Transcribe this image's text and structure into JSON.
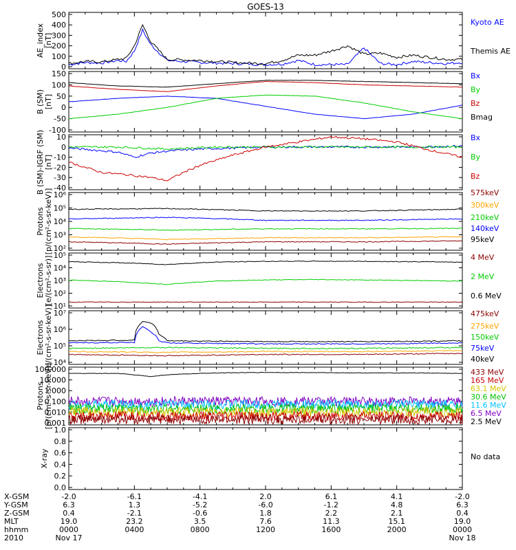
{
  "title": "GOES-13",
  "colors": {
    "black": "#000000",
    "blue": "#0000ff",
    "green": "#00cc00",
    "red": "#cc0000",
    "darkred": "#8b0000",
    "orange": "#ffa500",
    "gold": "#d4c400",
    "cyan": "#00bfff",
    "purple": "#8000c0",
    "lime": "#00c000"
  },
  "panels": [
    {
      "id": "ae",
      "ylabel": [
        "AE_index",
        "[nT]"
      ],
      "ticks": [
        "500",
        "400",
        "300",
        "200",
        "100",
        "0"
      ],
      "legend": [
        {
          "text": "Kyoto AE",
          "color": "#0000ff"
        },
        {
          "text": "Themis AE",
          "color": "#000000"
        }
      ]
    },
    {
      "id": "bsm",
      "ylabel": [
        "B (SM)",
        "[nT]"
      ],
      "ticks": [
        "150",
        "100",
        "50",
        "0",
        "-50",
        "-100"
      ],
      "legend": [
        {
          "text": "Bx",
          "color": "#0000ff"
        },
        {
          "text": "By",
          "color": "#00cc00"
        },
        {
          "text": "Bz",
          "color": "#cc0000"
        },
        {
          "text": "Bmag",
          "color": "#000000"
        }
      ]
    },
    {
      "id": "bigrf",
      "ylabel": [
        "B (SM)-IGRF (SM)",
        "[nT]"
      ],
      "ticks": [
        "10",
        "0",
        "-10",
        "-20",
        "-30",
        "-40"
      ],
      "legend": [
        {
          "text": "Bx",
          "color": "#0000ff"
        },
        {
          "text": "By",
          "color": "#00cc00"
        },
        {
          "text": "Bz",
          "color": "#cc0000"
        }
      ]
    },
    {
      "id": "protons",
      "ylabel": [
        "Protons",
        "[p/(cm²-s-sr-keV)]"
      ],
      "ticks": [
        "10⁶",
        "10⁵",
        "10⁴",
        "10³",
        "10²"
      ],
      "legend": [
        {
          "text": "575keV",
          "color": "#8b0000"
        },
        {
          "text": "300keV",
          "color": "#ffa500"
        },
        {
          "text": "210keV",
          "color": "#00cc00"
        },
        {
          "text": "140keV",
          "color": "#0000ff"
        },
        {
          "text": "95keV",
          "color": "#000000"
        }
      ]
    },
    {
      "id": "electrons_mev",
      "ylabel": [
        "Electrons",
        "[e/(cm²-s-sr)]"
      ],
      "ticks": [
        "10⁵",
        "10⁴",
        "10³",
        "10²",
        "10¹"
      ],
      "legend": [
        {
          "text": "4 MeV",
          "color": "#8b0000"
        },
        {
          "text": "2 MeV",
          "color": "#00cc00"
        },
        {
          "text": "0.6 MeV",
          "color": "#000000"
        }
      ]
    },
    {
      "id": "electrons_kev",
      "ylabel": [
        "Electrons",
        "[e/(cm²-s-sr-keV)]"
      ],
      "ticks": [
        "10⁷",
        "10⁶",
        "10⁵",
        "10⁴"
      ],
      "legend": [
        {
          "text": "475keV",
          "color": "#8b0000"
        },
        {
          "text": "275keV",
          "color": "#ffa500"
        },
        {
          "text": "150keV",
          "color": "#00cc00"
        },
        {
          "text": "75keV",
          "color": "#0000ff"
        },
        {
          "text": "40keV",
          "color": "#000000"
        }
      ]
    },
    {
      "id": "protons_mev",
      "ylabel": [
        "Protons",
        "[p/(cm²-s-sr-keV)]"
      ],
      "ticks": [
        "100.000",
        "10.000",
        "1.000",
        "0.100",
        "0.010",
        "0.001"
      ],
      "legend": [
        {
          "text": "433 MeV",
          "color": "#8b0000"
        },
        {
          "text": "165 MeV",
          "color": "#cc0000"
        },
        {
          "text": "63.1 MeV",
          "color": "#d4c400"
        },
        {
          "text": "30.6 MeV",
          "color": "#00c000"
        },
        {
          "text": "11.6 MeV",
          "color": "#00bfff"
        },
        {
          "text": "6.5 MeV",
          "color": "#8000c0"
        },
        {
          "text": "2.5 MeV",
          "color": "#000000"
        }
      ]
    },
    {
      "id": "xray",
      "ylabel": [
        "X-ray"
      ],
      "ticks": [
        "1.0",
        "0.8",
        "0.6",
        "0.4",
        "0.2",
        "0.0"
      ],
      "legend": [
        {
          "text": "No data",
          "color": "#000000"
        }
      ]
    }
  ],
  "footer": {
    "rows": [
      {
        "label": "X-GSM",
        "values": [
          "-2.0",
          "-6.1",
          "-4.1",
          "2.0",
          "6.1",
          "4.1",
          "-2.0"
        ]
      },
      {
        "label": "Y-GSM",
        "values": [
          "6.3",
          "1.3",
          "-5.2",
          "-6.0",
          "-1.2",
          "4.8",
          "6.3"
        ]
      },
      {
        "label": "Z-GSM",
        "values": [
          "0.4",
          "-2.1",
          "-0.6",
          "1.8",
          "2.2",
          "2.1",
          "0.4"
        ]
      },
      {
        "label": "MLT",
        "values": [
          "19.0",
          "23.2",
          "3.5",
          "7.6",
          "11.3",
          "15.1",
          "19.0"
        ]
      },
      {
        "label": "hhmm",
        "values": [
          "0000",
          "0400",
          "0800",
          "1200",
          "1600",
          "2000",
          "0000"
        ]
      },
      {
        "label": "2010",
        "values": [
          "Nov 17",
          "",
          "",
          "",
          "",
          "",
          "Nov 18"
        ]
      }
    ]
  },
  "chart_data": {
    "type": "line",
    "title": "GOES-13",
    "x": [
      "0000",
      "0400",
      "0800",
      "1200",
      "1600",
      "2000",
      "0000"
    ],
    "x_date_start": "Nov 17 2010",
    "x_date_end": "Nov 18 2010",
    "panels": [
      {
        "name": "AE_index",
        "ylabel": "AE_index [nT]",
        "ylim": [
          0,
          500
        ],
        "series": [
          {
            "name": "Kyoto AE",
            "x_hours": [
              0,
              1,
              2,
              3,
              3.5,
              4,
              4.5,
              5,
              6,
              8,
              10,
              12,
              13,
              14,
              15,
              16,
              17,
              18,
              19,
              20,
              21,
              22,
              23,
              24
            ],
            "values": [
              20,
              40,
              35,
              60,
              50,
              150,
              350,
              210,
              60,
              40,
              30,
              20,
              25,
              60,
              20,
              20,
              20,
              180,
              30,
              20,
              50,
              40,
              30,
              40
            ]
          },
          {
            "name": "Themis AE",
            "x_hours": [
              0,
              1,
              2,
              3,
              3.5,
              4,
              4.5,
              5,
              6,
              8,
              10,
              12,
              13,
              14,
              15,
              16,
              17,
              18,
              19,
              20,
              21,
              22,
              23,
              24
            ],
            "values": [
              30,
              50,
              45,
              70,
              80,
              200,
              400,
              240,
              70,
              60,
              40,
              30,
              60,
              110,
              110,
              150,
              200,
              120,
              130,
              90,
              110,
              90,
              70,
              70
            ]
          }
        ]
      },
      {
        "name": "B (SM)",
        "ylabel": "B (SM) [nT]",
        "ylim": [
          -100,
          150
        ],
        "series": [
          {
            "name": "Bx",
            "x_hours": [
              0,
              3,
              6,
              9,
              12,
              15,
              18,
              21,
              24
            ],
            "values": [
              25,
              40,
              50,
              40,
              5,
              -30,
              -50,
              -30,
              10
            ]
          },
          {
            "name": "By",
            "x_hours": [
              0,
              3,
              6,
              9,
              12,
              15,
              18,
              21,
              24
            ],
            "values": [
              -50,
              -30,
              0,
              40,
              55,
              50,
              20,
              -20,
              -50
            ]
          },
          {
            "name": "Bz",
            "x_hours": [
              0,
              3,
              6,
              9,
              12,
              15,
              18,
              21,
              24
            ],
            "values": [
              95,
              80,
              70,
              95,
              115,
              110,
              100,
              95,
              90
            ]
          },
          {
            "name": "Bmag",
            "x_hours": [
              0,
              3,
              6,
              9,
              12,
              15,
              18,
              21,
              24
            ],
            "values": [
              110,
              95,
              90,
              105,
              120,
              120,
              115,
              110,
              105
            ]
          }
        ]
      },
      {
        "name": "B (SM)-IGRF (SM)",
        "ylabel": "B (SM)-IGRF (SM) [nT]",
        "ylim": [
          -40,
          10
        ],
        "series": [
          {
            "name": "Bx",
            "x_hours": [
              0,
              3,
              4,
              5,
              6,
              8,
              10,
              12,
              15,
              18,
              21,
              24
            ],
            "values": [
              -1,
              -5,
              -10,
              -6,
              -4,
              -2,
              -1,
              0,
              0,
              0,
              0,
              1
            ]
          },
          {
            "name": "By",
            "x_hours": [
              0,
              3,
              6,
              9,
              12,
              15,
              18,
              21,
              24
            ],
            "values": [
              0,
              0,
              -2,
              0,
              0,
              0,
              0,
              0,
              0
            ]
          },
          {
            "name": "Bz",
            "x_hours": [
              0,
              2,
              4,
              5,
              6,
              7,
              8,
              10,
              12,
              14,
              16,
              18,
              20,
              22,
              24
            ],
            "values": [
              -15,
              -25,
              -28,
              -30,
              -33,
              -25,
              -18,
              -8,
              0,
              5,
              10,
              8,
              5,
              -3,
              -10
            ]
          }
        ]
      },
      {
        "name": "Protons",
        "ylabel": "Protons [p/(cm²-s-sr-keV)]",
        "yscale": "log",
        "ylim": [
          100,
          1000000
        ],
        "series": [
          {
            "name": "575keV",
            "x_hours": [
              0,
              6,
              12,
              18,
              24
            ],
            "values": [
              300,
              200,
              300,
              300,
              350
            ]
          },
          {
            "name": "300keV",
            "x_hours": [
              0,
              6,
              12,
              18,
              24
            ],
            "values": [
              700,
              450,
              600,
              600,
              700
            ]
          },
          {
            "name": "210keV",
            "x_hours": [
              0,
              6,
              12,
              18,
              24
            ],
            "values": [
              3000,
              2200,
              2800,
              2800,
              3000
            ]
          },
          {
            "name": "140keV",
            "x_hours": [
              0,
              6,
              12,
              18,
              24
            ],
            "values": [
              15000,
              20000,
              12000,
              12000,
              15000
            ]
          },
          {
            "name": "95keV",
            "x_hours": [
              0,
              6,
              12,
              18,
              24
            ],
            "values": [
              80000,
              90000,
              60000,
              60000,
              80000
            ]
          }
        ]
      },
      {
        "name": "Electrons",
        "ylabel": "Electrons [e/(cm²-s-sr)]",
        "yscale": "log",
        "ylim": [
          10,
          100000
        ],
        "series": [
          {
            "name": "4 MeV",
            "x_hours": [
              0,
              12,
              24
            ],
            "values": [
              20,
              20,
              20
            ]
          },
          {
            "name": "2 MeV",
            "x_hours": [
              0,
              3,
              6,
              9,
              12,
              15,
              18,
              21,
              24
            ],
            "values": [
              1100,
              800,
              500,
              900,
              1100,
              1200,
              1100,
              1000,
              900
            ]
          },
          {
            "name": "0.6 MeV",
            "x_hours": [
              0,
              3,
              6,
              9,
              12,
              15,
              18,
              21,
              24
            ],
            "values": [
              30000,
              25000,
              18000,
              28000,
              32000,
              33000,
              32000,
              30000,
              28000
            ]
          }
        ]
      },
      {
        "name": "Electrons",
        "ylabel": "Electrons [e/(cm²-s-sr-keV)]",
        "yscale": "log",
        "ylim": [
          10000,
          10000000
        ],
        "series": [
          {
            "name": "475keV",
            "x_hours": [
              0,
              6,
              12,
              18,
              24
            ],
            "values": [
              30000,
              25000,
              30000,
              30000,
              35000
            ]
          },
          {
            "name": "275keV",
            "x_hours": [
              0,
              6,
              12,
              18,
              24
            ],
            "values": [
              45000,
              40000,
              45000,
              45000,
              50000
            ]
          },
          {
            "name": "150keV",
            "x_hours": [
              0,
              6,
              12,
              18,
              24
            ],
            "values": [
              70000,
              80000,
              70000,
              70000,
              80000
            ]
          },
          {
            "name": "75keV",
            "x_hours": [
              0,
              4,
              4.5,
              5,
              5.5,
              6,
              12,
              18,
              24
            ],
            "values": [
              150000,
              160000,
              1500000,
              700000,
              200000,
              150000,
              130000,
              130000,
              150000
            ]
          },
          {
            "name": "40keV",
            "x_hours": [
              0,
              4,
              4.5,
              5,
              5.5,
              6,
              12,
              18,
              24
            ],
            "values": [
              200000,
              220000,
              3000000,
              2500000,
              500000,
              200000,
              180000,
              180000,
              200000
            ]
          }
        ]
      },
      {
        "name": "Protons",
        "ylabel": "Protons [p/(cm²-s-sr-keV)]",
        "yscale": "log",
        "ylim": [
          0.001,
          100
        ],
        "series": [
          {
            "name": "2.5 MeV",
            "x_hours": [
              0,
              3,
              5,
              6,
              9,
              12,
              15,
              18,
              21,
              24
            ],
            "values": [
              40,
              40,
              20,
              30,
              45,
              50,
              48,
              45,
              45,
              40
            ]
          },
          {
            "name": "6.5 MeV",
            "x_hours": [
              0,
              24
            ],
            "values": [
              0.1,
              0.1
            ]
          },
          {
            "name": "11.6 MeV",
            "x_hours": [
              0,
              24
            ],
            "values": [
              0.05,
              0.05
            ]
          },
          {
            "name": "30.6 MeV",
            "x_hours": [
              0,
              24
            ],
            "values": [
              0.02,
              0.02
            ]
          },
          {
            "name": "63.1 MeV",
            "x_hours": [
              0,
              24
            ],
            "values": [
              0.01,
              0.01
            ]
          },
          {
            "name": "165 MeV",
            "x_hours": [
              0,
              24
            ],
            "values": [
              0.004,
              0.004
            ]
          },
          {
            "name": "433 MeV",
            "x_hours": [
              0,
              24
            ],
            "values": [
              0.002,
              0.002
            ]
          }
        ]
      },
      {
        "name": "X-ray",
        "ylabel": "X-ray",
        "ylim": [
          0,
          1
        ],
        "series": []
      }
    ]
  }
}
